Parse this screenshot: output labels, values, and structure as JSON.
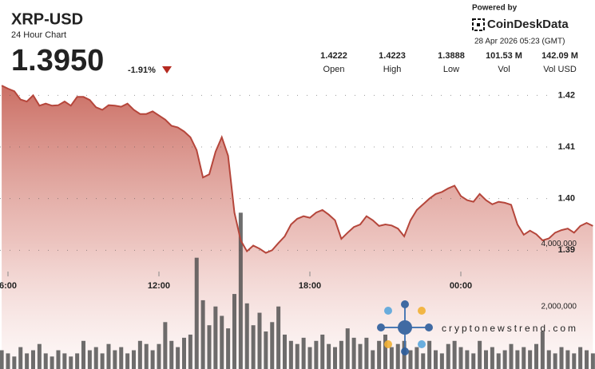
{
  "chart_data": {
    "type": "price-volume",
    "title": "XRP-USD",
    "subtitle": "24 Hour Chart",
    "price_text": "1.3950",
    "change_text": "-1.91%",
    "stats": [
      {
        "value": "1.4222",
        "label": "Open"
      },
      {
        "value": "1.4223",
        "label": "High"
      },
      {
        "value": "1.3888",
        "label": "Low"
      },
      {
        "value": "101.53 M",
        "label": "Vol"
      },
      {
        "value": "142.09 M",
        "label": "Vol USD"
      }
    ],
    "powered_by": "Powered by",
    "provider": "CoinDeskData",
    "timestamp": "28 Apr 2026 05:23 (GMT)",
    "watermark": "cryptonewstrend.com",
    "x": [
      5.75,
      6,
      6.25,
      6.5,
      6.75,
      7,
      7.25,
      7.5,
      7.75,
      8,
      8.25,
      8.5,
      8.75,
      9,
      9.25,
      9.5,
      9.75,
      10,
      10.25,
      10.5,
      10.75,
      11,
      11.25,
      11.5,
      11.75,
      12,
      12.25,
      12.5,
      12.75,
      13,
      13.25,
      13.5,
      13.75,
      14,
      14.25,
      14.5,
      14.75,
      15,
      15.25,
      15.5,
      15.75,
      16,
      16.25,
      16.5,
      16.75,
      17,
      17.25,
      17.5,
      17.75,
      18,
      18.25,
      18.5,
      18.75,
      19,
      19.25,
      19.5,
      19.75,
      20,
      20.25,
      20.5,
      20.75,
      21,
      21.25,
      21.5,
      21.75,
      22,
      22.25,
      22.5,
      22.75,
      23,
      23.25,
      23.5,
      23.75,
      24,
      24.25,
      24.5,
      24.75,
      25,
      25.25,
      25.5,
      25.75,
      26,
      26.25,
      26.5,
      26.75,
      27,
      27.25,
      27.5,
      27.75,
      28,
      28.25,
      28.5,
      28.75,
      29,
      29.25
    ],
    "xlim": [
      5.683,
      29.333
    ],
    "xticks": [
      {
        "value": 6,
        "label": "6:00"
      },
      {
        "value": 12,
        "label": "12:00"
      },
      {
        "value": 18,
        "label": "18:00"
      },
      {
        "value": 24,
        "label": "00:00"
      }
    ],
    "price": {
      "color": "#b5463b",
      "fill": "#c8675c",
      "values": [
        1.4219,
        1.4213,
        1.4208,
        1.4192,
        1.4188,
        1.42,
        1.418,
        1.4184,
        1.418,
        1.4181,
        1.4188,
        1.418,
        1.4197,
        1.4197,
        1.4191,
        1.4177,
        1.4172,
        1.4181,
        1.418,
        1.4178,
        1.4184,
        1.4172,
        1.4164,
        1.4164,
        1.4169,
        1.4161,
        1.4153,
        1.4141,
        1.4138,
        1.413,
        1.4119,
        1.4094,
        1.4041,
        1.4047,
        1.4091,
        1.4119,
        1.4083,
        1.3973,
        1.3919,
        1.3898,
        1.3909,
        1.3903,
        1.3895,
        1.39,
        1.3914,
        1.3927,
        1.395,
        1.3961,
        1.3966,
        1.3963,
        1.3973,
        1.3978,
        1.3969,
        1.3958,
        1.3922,
        1.3934,
        1.3945,
        1.395,
        1.3966,
        1.3958,
        1.3947,
        1.395,
        1.3948,
        1.3942,
        1.3927,
        1.3958,
        1.3978,
        1.3989,
        1.4,
        1.4009,
        1.4013,
        1.402,
        1.4025,
        1.4005,
        1.3997,
        1.3994,
        1.4009,
        1.3997,
        1.3989,
        1.3994,
        1.3992,
        1.3988,
        1.395,
        1.393,
        1.3938,
        1.3931,
        1.3919,
        1.3923,
        1.3934,
        1.3939,
        1.3942,
        1.3934,
        1.3947,
        1.3953,
        1.3947
      ]
    },
    "volume": {
      "color": "#4a4a4a",
      "values": [
        600000,
        500000,
        400000,
        700000,
        500000,
        600000,
        800000,
        500000,
        400000,
        600000,
        500000,
        400000,
        500000,
        900000,
        600000,
        700000,
        500000,
        800000,
        600000,
        700000,
        500000,
        600000,
        900000,
        800000,
        600000,
        800000,
        1500000,
        900000,
        700000,
        1000000,
        1100000,
        3560000,
        2200000,
        1400000,
        2000000,
        1700000,
        1300000,
        2400000,
        5000000,
        2100000,
        1400000,
        1800000,
        1200000,
        1500000,
        2000000,
        1100000,
        900000,
        800000,
        1000000,
        700000,
        900000,
        1100000,
        800000,
        700000,
        900000,
        1300000,
        1000000,
        800000,
        1000000,
        600000,
        900000,
        1100000,
        700000,
        800000,
        900000,
        600000,
        700000,
        500000,
        900000,
        600000,
        500000,
        800000,
        900000,
        700000,
        600000,
        500000,
        900000,
        600000,
        700000,
        500000,
        600000,
        800000,
        600000,
        700000,
        600000,
        800000,
        1200000,
        600000,
        500000,
        700000,
        600000,
        500000,
        700000,
        600000,
        500000
      ]
    },
    "ylim": [
      1.367,
      1.423
    ],
    "yticks": [
      1.42,
      1.41,
      {
        "value": 1.4,
        "label": "1.40"
      },
      1.39
    ],
    "y2lim": [
      0,
      9250000
    ],
    "y2ticks": [
      {
        "value": 4000000,
        "label": "4,000,000"
      },
      {
        "value": 2000000,
        "label": "2,000,000"
      }
    ],
    "grid": true
  }
}
